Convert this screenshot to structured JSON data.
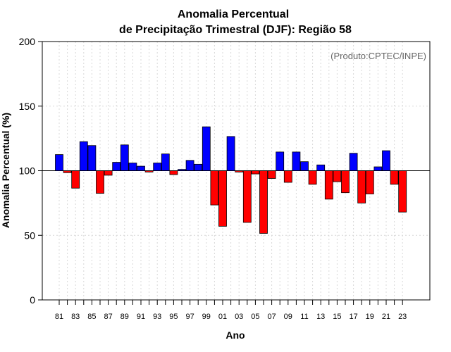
{
  "chart_data": {
    "type": "bar",
    "title_line1": "Anomalia Percentual",
    "title_line2": "de Precipitação Trimestral (DJF): Região 58",
    "xlabel": "Ano",
    "ylabel": "Anomalia Percentual (%)",
    "annotation": "(Produto:CPTEC/INPE)",
    "ylim": [
      0,
      200
    ],
    "yticks": [
      0,
      50,
      100,
      150,
      200
    ],
    "baseline": 100,
    "x_tick_labels": [
      "81",
      "83",
      "85",
      "87",
      "89",
      "91",
      "93",
      "95",
      "97",
      "99",
      "01",
      "03",
      "05",
      "07",
      "09",
      "11",
      "13",
      "15",
      "17",
      "19",
      "21",
      "23"
    ],
    "categories": [
      1981,
      1982,
      1983,
      1984,
      1985,
      1986,
      1987,
      1988,
      1989,
      1990,
      1991,
      1992,
      1993,
      1994,
      1995,
      1996,
      1997,
      1998,
      1999,
      2000,
      2001,
      2002,
      2003,
      2004,
      2005,
      2006,
      2007,
      2008,
      2009,
      2010,
      2011,
      2012,
      2013,
      2014,
      2015,
      2016,
      2017,
      2018,
      2019,
      2020,
      2021,
      2022,
      2023
    ],
    "values": [
      112.5,
      98.5,
      86.5,
      122.5,
      119.5,
      82.5,
      96.5,
      106.5,
      120,
      106,
      103.5,
      99,
      106,
      113,
      97,
      101,
      108,
      105,
      134,
      73.5,
      57,
      126.5,
      99,
      60,
      97.5,
      51.5,
      94,
      114.5,
      91,
      114.5,
      107,
      89.5,
      104.5,
      78,
      91.5,
      83,
      113.5,
      75,
      82,
      103,
      115.5,
      89.5,
      68
    ],
    "colors": {
      "positive": "#0000ff",
      "negative": "#ff0000",
      "grid": "#d8d8d8",
      "frame": "#000000"
    }
  }
}
